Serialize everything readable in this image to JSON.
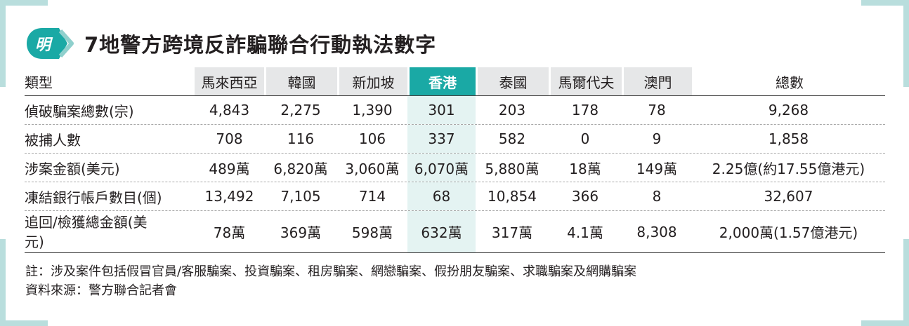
{
  "title": "7地警方跨境反詐騙聯合行動執法數字",
  "logo_text": "明",
  "colors": {
    "accent": "#1aa9a5",
    "frame": "#b9dedd",
    "header_gray": "#e6e7e8",
    "hk_column": "#e4f3f2"
  },
  "table": {
    "headers": [
      "類型",
      "馬來西亞",
      "韓國",
      "新加坡",
      "香港",
      "泰國",
      "馬爾代夫",
      "澳門",
      "總數"
    ],
    "rows": [
      {
        "label": "偵破騙案總數(宗)",
        "cells": [
          "4,843",
          "2,275",
          "1,390",
          "301",
          "203",
          "178",
          "78",
          "9,268"
        ]
      },
      {
        "label": "被捕人數",
        "cells": [
          "708",
          "116",
          "106",
          "337",
          "582",
          "0",
          "9",
          "1,858"
        ]
      },
      {
        "label": "涉案金額(美元)",
        "cells": [
          "489萬",
          "6,820萬",
          "3,060萬",
          "6,070萬",
          "5,880萬",
          "18萬",
          "149萬",
          "2.25億(約17.55億港元)"
        ]
      },
      {
        "label": "凍結銀行帳戶數目(個)",
        "cells": [
          "13,492",
          "7,105",
          "714",
          "68",
          "10,854",
          "366",
          "8",
          "32,607"
        ]
      },
      {
        "label": "追回/檢獲總金額(美元)",
        "cells": [
          "78萬",
          "369萬",
          "598萬",
          "632萬",
          "317萬",
          "4.1萬",
          "8,308",
          "2,000萬(1.57億港元)"
        ]
      }
    ]
  },
  "footer": {
    "note": "註：涉及案件包括假冒官員/客服騙案、投資騙案、租房騙案、網戀騙案、假扮朋友騙案、求職騙案及網購騙案",
    "source": "資料來源：警方聯合記者會"
  }
}
